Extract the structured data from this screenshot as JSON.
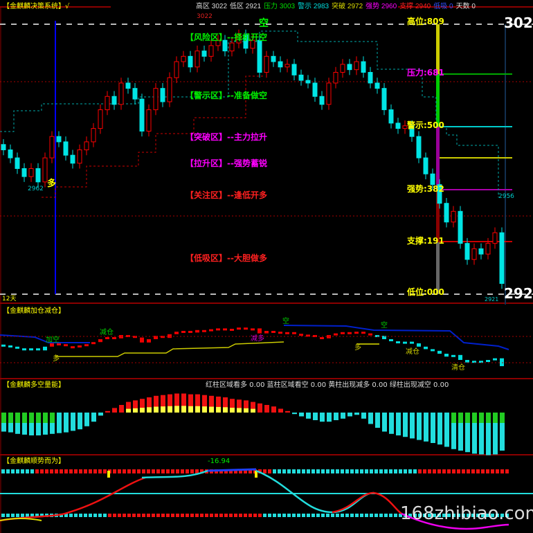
{
  "header": {
    "system_title": "【金麒麟决策系统】√",
    "stats": [
      {
        "label": "高区",
        "value": "3022",
        "color": "#dddddd"
      },
      {
        "label": "低区",
        "value": "2921",
        "color": "#dddddd"
      },
      {
        "label": "压力",
        "value": "3003",
        "color": "#00dd00"
      },
      {
        "label": "警示",
        "value": "2983",
        "color": "#00dddd"
      },
      {
        "label": "突破",
        "value": "2972",
        "color": "#dddd00"
      },
      {
        "label": "强势",
        "value": "2960",
        "color": "#ff00ff"
      },
      {
        "label": "支撑",
        "value": "2940",
        "color": "#ff2020"
      },
      {
        "label": "低吸",
        "value": "0",
        "color": "#3050ff"
      },
      {
        "label": "天数",
        "value": "0",
        "color": "#dddddd"
      }
    ]
  },
  "main": {
    "high_marker": "3022",
    "zones": [
      {
        "text": "【风险区】--择机开空",
        "color": "#00ee00"
      },
      {
        "text": "【警示区】--准备做空",
        "color": "#00ee00"
      },
      {
        "text": "【突破区】--主力拉升",
        "color": "#ff00ff"
      },
      {
        "text": "【拉升区】--强势蓄锐",
        "color": "#ff00ff"
      },
      {
        "text": "【关注区】--逢低开多",
        "color": "#ff2020"
      },
      {
        "text": "【低吸区】--大胆做多",
        "color": "#ff2020"
      }
    ],
    "levels": [
      {
        "text": "高位:809",
        "color": "#ffff00"
      },
      {
        "text": "压力:681",
        "color": "#ff00ff"
      },
      {
        "text": "警示:500",
        "color": "#ffff00"
      },
      {
        "text": "强势:382",
        "color": "#ffff00"
      },
      {
        "text": "支撑:191",
        "color": "#ffff00"
      },
      {
        "text": "低位:000",
        "color": "#ffff00"
      }
    ],
    "axis_high": "3022",
    "axis_low": "2921",
    "signal_kong": "空",
    "signal_duo": "多",
    "label_2962": "2962",
    "label_2956": "2956",
    "label_2921": "2921",
    "days": "12天"
  },
  "panel2": {
    "title": "【金麒麟加仓减仓】",
    "signals": [
      "加空",
      "多",
      "减仓",
      "减多",
      "空",
      "多",
      "空",
      "减仓",
      "清仓"
    ]
  },
  "panel3": {
    "title": "【金麒麟多空量能】",
    "stats": "红柱区域看多 0.00  蓝柱区域看空 0.00  黄柱出现减多 0.00  绿柱出现减空 0.00"
  },
  "panel4": {
    "title": "【金麒麟顺势而为】",
    "value": "-16.94"
  },
  "watermark": "168zhibiao.com",
  "chart_data": {
    "type": "candlestick",
    "ylim": [
      2921,
      3022
    ],
    "main_close": [
      2975,
      2972,
      2968,
      2965,
      2968,
      2963,
      2972,
      2980,
      2978,
      2973,
      2970,
      2975,
      2978,
      2983,
      2990,
      2995,
      2992,
      3000,
      2998,
      2994,
      2982,
      2990,
      2998,
      2993,
      3002,
      3008,
      3010,
      3006,
      3012,
      3010,
      3014,
      3016,
      3012,
      3015,
      3018,
      3013,
      3016,
      3004,
      3010,
      3008,
      3006,
      3007,
      3003,
      3001,
      3000,
      2995,
      2992,
      3000,
      3004,
      3007,
      3005,
      3008,
      3004,
      3000,
      2998,
      2990,
      2985,
      2983,
      2984,
      2980,
      2972,
      2966,
      2962,
      2955,
      2948,
      2952,
      2940,
      2934,
      2938,
      2936,
      2940,
      2944,
      2925
    ],
    "volume_energy": [
      -25,
      -26,
      -28,
      -29,
      -30,
      -30,
      -29,
      -28,
      -27,
      -26,
      -24,
      -22,
      -18,
      -12,
      -4,
      2,
      6,
      10,
      14,
      16,
      18,
      20,
      22,
      23,
      24,
      25,
      25,
      24,
      24,
      23,
      22,
      21,
      20,
      18,
      17,
      16,
      14,
      12,
      10,
      8,
      5,
      2,
      -2,
      -5,
      -8,
      -10,
      -12,
      -12,
      -10,
      -8,
      -5,
      -3,
      -8,
      -15,
      -20,
      -25,
      -28,
      -30,
      -32,
      -34,
      -36,
      -38,
      -40,
      -42,
      -45,
      -48,
      -50,
      -52,
      -54,
      -55,
      -56,
      -55,
      -50
    ]
  }
}
